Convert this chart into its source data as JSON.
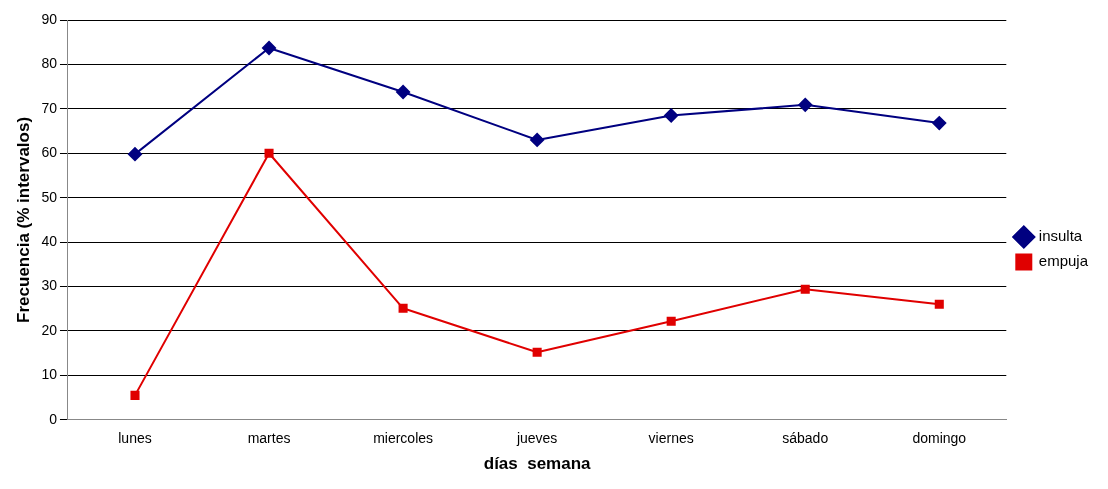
{
  "chart_data": {
    "type": "line",
    "xlabel": "días  semana",
    "ylabel": "Frecuencia (% intervalos)",
    "categories": [
      "lunes",
      "martes",
      "miercoles",
      "jueves",
      "viernes",
      "sábado",
      "domingo"
    ],
    "series": [
      {
        "name": "insulta",
        "color": "#000080",
        "marker": "diamond",
        "values": [
          59.8,
          83.7,
          73.8,
          63,
          68.5,
          70.9,
          66.8
        ]
      },
      {
        "name": "empuja",
        "color": "#e00000",
        "marker": "square",
        "values": [
          5.5,
          60,
          25.1,
          15.2,
          22.2,
          29.4,
          26
        ]
      }
    ],
    "ylim": [
      0,
      90
    ],
    "yticks": [
      0,
      10,
      20,
      30,
      40,
      50,
      60,
      70,
      80,
      90
    ],
    "grid": "y",
    "legend": "right"
  }
}
